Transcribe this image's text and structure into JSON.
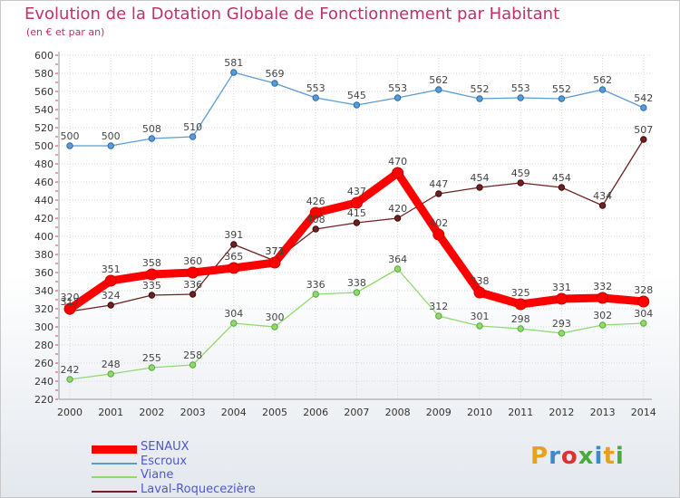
{
  "title": "Evolution de la Dotation Globale de Fonctionnement par Habitant",
  "subtitle": "(en € et par an)",
  "logo": {
    "text": "Proxiti",
    "colors": [
      "#e8a020",
      "#3a8ad0",
      "#e03030",
      "#4aaa40",
      "#3a8ad0",
      "#e8a020",
      "#4aaa40"
    ]
  },
  "chart_data": {
    "type": "line",
    "title": "Evolution de la Dotation Globale de Fonctionnement par Habitant",
    "subtitle": "(en € et par an)",
    "x": [
      "2000",
      "2001",
      "2002",
      "2003",
      "2004",
      "2005",
      "2006",
      "2007",
      "2008",
      "2009",
      "2010",
      "2011",
      "2012",
      "2013",
      "2014"
    ],
    "ylim": [
      220,
      600
    ],
    "ytick_step": 20,
    "grid": true,
    "legend_position": "bottom-left",
    "series": [
      {
        "name": "SENAUX",
        "color": "#ff0000",
        "values": [
          320,
          351,
          358,
          360,
          365,
          371,
          426,
          437,
          470,
          402,
          338,
          325,
          331,
          332,
          328
        ],
        "labels": [
          "320",
          "351",
          "358",
          "360",
          "365",
          "371",
          "426",
          "437",
          "470",
          "402",
          "338",
          "325",
          "331",
          "332",
          "328"
        ]
      },
      {
        "name": "Escroux",
        "color": "#5b9bd5",
        "values": [
          500,
          500,
          508,
          510,
          581,
          569,
          553,
          545,
          553,
          562,
          552,
          553,
          552,
          562,
          542
        ],
        "labels": [
          "500",
          "500",
          "508",
          "510",
          "581",
          "569",
          "553",
          "545",
          "553",
          "562",
          "552",
          "553",
          "552",
          "562",
          "542"
        ]
      },
      {
        "name": "Viane",
        "color": "#90d870",
        "values": [
          242,
          248,
          255,
          258,
          304,
          300,
          336,
          338,
          364,
          312,
          301,
          298,
          293,
          302,
          304
        ],
        "labels": [
          "242",
          "248",
          "255",
          "258",
          "304",
          "300",
          "336",
          "338",
          "364",
          "312",
          "301",
          "298",
          "293",
          "302",
          "304"
        ]
      },
      {
        "name": "Laval-Roquecezière",
        "color": "#702020",
        "values": [
          317,
          324,
          335,
          336,
          391,
          373,
          408,
          415,
          420,
          447,
          454,
          459,
          454,
          434,
          507
        ],
        "labels": [
          "317",
          "324",
          "335",
          "336",
          "391",
          "373",
          "408",
          "415",
          "420",
          "447",
          "454",
          "459",
          "454",
          "434",
          "507"
        ]
      }
    ]
  }
}
